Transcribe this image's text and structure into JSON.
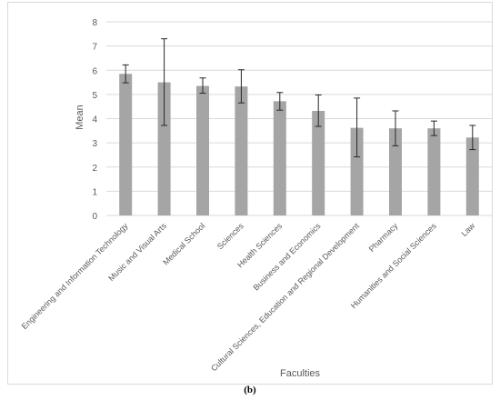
{
  "caption": "(b)",
  "chart_data": {
    "type": "bar",
    "title": "",
    "xlabel": "Faculties",
    "ylabel": "Mean",
    "ylim": [
      0,
      8
    ],
    "yticks": [
      0,
      1,
      2,
      3,
      4,
      5,
      6,
      7,
      8
    ],
    "grid": true,
    "legend": "none",
    "categories": [
      "Engineering and Information Technology",
      "Music and Visual Arts",
      "Medical School",
      "Sciences",
      "Health Sciences",
      "Business and Economics",
      "Cultural Sciences, Education and Regional Development",
      "Pharmacy",
      "Humanities and Social Sciences",
      "Law"
    ],
    "values": [
      5.85,
      5.5,
      5.35,
      5.33,
      4.72,
      4.32,
      3.62,
      3.6,
      3.6,
      3.22
    ],
    "error_low": [
      5.48,
      3.72,
      5.05,
      4.65,
      4.35,
      3.68,
      2.42,
      2.88,
      3.3,
      2.72
    ],
    "error_high": [
      6.22,
      7.3,
      5.68,
      6.02,
      5.08,
      4.98,
      4.85,
      4.32,
      3.9,
      3.72
    ],
    "colors": {
      "bar": "#a5a5a5",
      "error": "#262626",
      "grid": "#d9d9d9",
      "text": "#595959"
    }
  }
}
